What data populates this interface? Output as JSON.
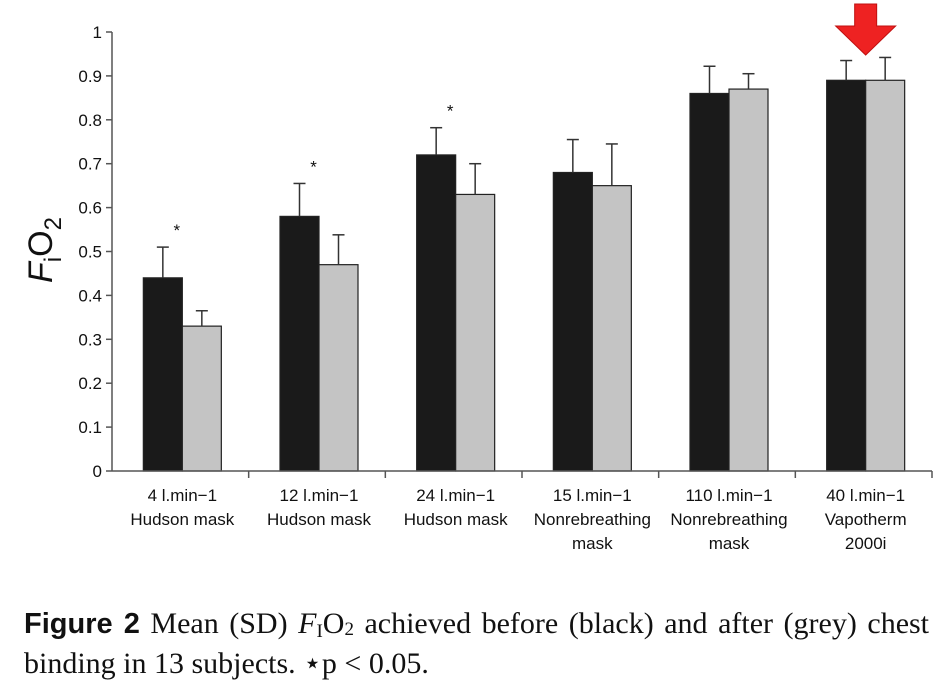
{
  "chart_data": {
    "type": "bar",
    "ylabel": {
      "main": "F",
      "sub": "i",
      "main2": "O",
      "sub2": "2"
    },
    "ylim": [
      0,
      1
    ],
    "yticks": [
      "0",
      "0.1",
      "0.2",
      "0.3",
      "0.4",
      "0.5",
      "0.6",
      "0.7",
      "0.8",
      "0.9",
      "1"
    ],
    "categories": [
      {
        "line1": "4 l.min−1",
        "line2": "Hudson mask",
        "line3": ""
      },
      {
        "line1": "12 l.min−1",
        "line2": "Hudson mask",
        "line3": ""
      },
      {
        "line1": "24 l.min−1",
        "line2": "Hudson mask",
        "line3": ""
      },
      {
        "line1": "15 l.min−1",
        "line2": "Nonrebreathing",
        "line3": "mask"
      },
      {
        "line1": "110 l.min−1",
        "line2": "Nonrebreathing",
        "line3": "mask"
      },
      {
        "line1": "40 l.min−1",
        "line2": "Vapotherm",
        "line3": "2000i"
      }
    ],
    "series": [
      {
        "color": "#1a1a1a",
        "values": [
          0.44,
          0.58,
          0.72,
          0.68,
          0.86,
          0.89
        ],
        "sd": [
          0.07,
          0.075,
          0.062,
          0.075,
          0.062,
          0.045
        ]
      },
      {
        "color": "#c4c4c4",
        "values": [
          0.33,
          0.47,
          0.63,
          0.65,
          0.87,
          0.89
        ],
        "sd": [
          0.035,
          0.068,
          0.07,
          0.095,
          0.035,
          0.052
        ]
      }
    ],
    "significance_marker": "*",
    "significant_groups": [
      0,
      1,
      2
    ],
    "highlight_arrow": {
      "group": 5,
      "color": "#ee2222"
    }
  },
  "caption": {
    "label": "Figure 2",
    "part1": "Mean (SD) ",
    "f": "F",
    "i": "I",
    "o": "O",
    "two": "2",
    "part2": " achieved before (black) and after (grey) chest binding in 13 subjects. ⋆p < 0.05."
  }
}
